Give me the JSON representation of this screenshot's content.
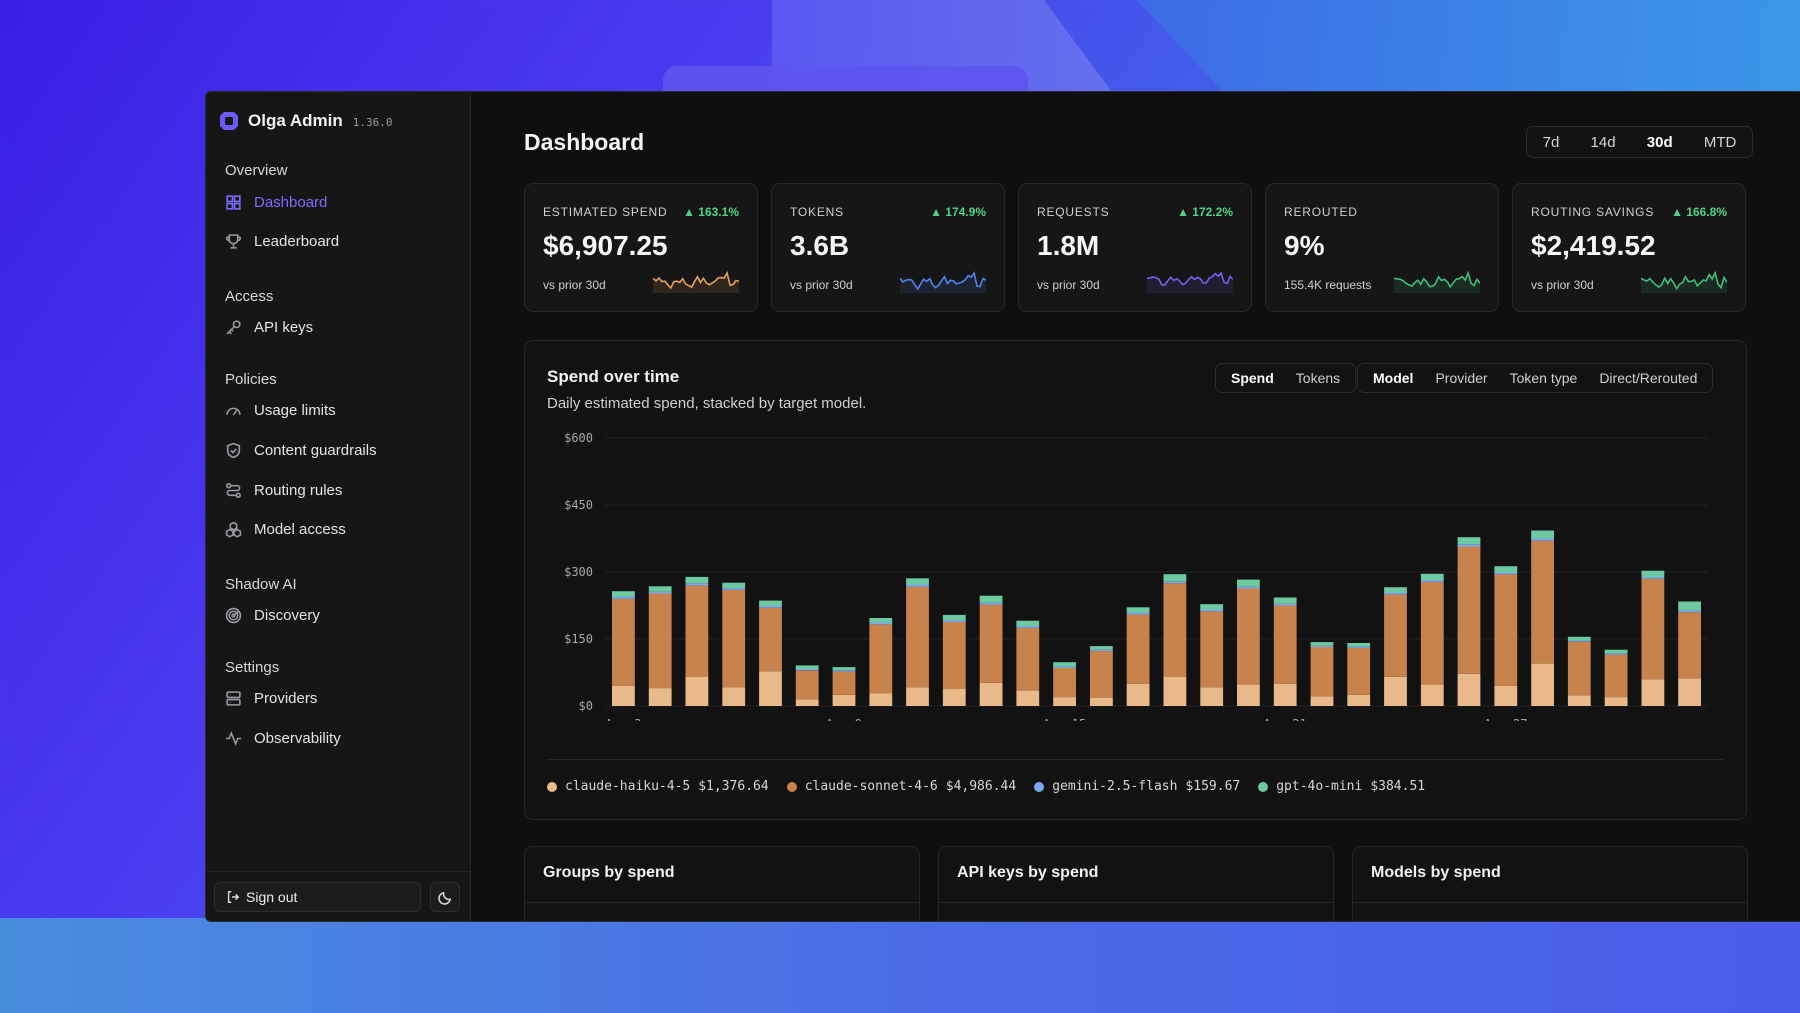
{
  "app": {
    "name": "Olga Admin",
    "version": "1.36.0"
  },
  "sidebar": {
    "sections": [
      {
        "label": "Overview",
        "items": [
          {
            "label": "Dashboard",
            "icon": "grid-icon",
            "active": true
          },
          {
            "label": "Leaderboard",
            "icon": "trophy-icon"
          }
        ]
      },
      {
        "label": "Access",
        "items": [
          {
            "label": "API keys",
            "icon": "key-icon"
          }
        ]
      },
      {
        "label": "Policies",
        "items": [
          {
            "label": "Usage limits",
            "icon": "gauge-icon"
          },
          {
            "label": "Content guardrails",
            "icon": "shield-icon"
          },
          {
            "label": "Routing rules",
            "icon": "route-icon"
          },
          {
            "label": "Model access",
            "icon": "cubes-icon"
          }
        ]
      },
      {
        "label": "Shadow AI",
        "items": [
          {
            "label": "Discovery",
            "icon": "radar-icon"
          }
        ]
      },
      {
        "label": "Settings",
        "items": [
          {
            "label": "Providers",
            "icon": "server-icon"
          },
          {
            "label": "Observability",
            "icon": "activity-icon"
          }
        ]
      }
    ],
    "sign_out": "Sign out"
  },
  "page": {
    "title": "Dashboard"
  },
  "range": {
    "options": [
      "7d",
      "14d",
      "30d",
      "MTD"
    ],
    "selected": "30d"
  },
  "kpis": [
    {
      "label": "ESTIMATED SPEND",
      "delta": "▲ 163.1%",
      "value": "$6,907.25",
      "sub": "vs prior 30d",
      "color": "#e8a056"
    },
    {
      "label": "TOKENS",
      "delta": "▲ 174.9%",
      "value": "3.6B",
      "sub": "vs prior 30d",
      "color": "#4f86f0"
    },
    {
      "label": "REQUESTS",
      "delta": "▲ 172.2%",
      "value": "1.8M",
      "sub": "vs prior 30d",
      "color": "#7a5cf0"
    },
    {
      "label": "REROUTED",
      "delta": "",
      "value": "9%",
      "sub": "155.4K requests",
      "color": "#3fbf78"
    },
    {
      "label": "ROUTING SAVINGS",
      "delta": "▲ 166.8%",
      "value": "$2,419.52",
      "sub": "vs prior 30d",
      "color": "#3fbf78"
    }
  ],
  "chart_card": {
    "title": "Spend over time",
    "subtitle": "Daily estimated spend, stacked by target model.",
    "metric_tabs": [
      "Spend",
      "Tokens"
    ],
    "metric_selected": "Spend",
    "group_tabs": [
      "Model",
      "Provider",
      "Token type",
      "Direct/Rerouted"
    ],
    "group_selected": "Model"
  },
  "chart_data": {
    "type": "bar",
    "stacked": true,
    "ylim": [
      0,
      600
    ],
    "yticks": [
      "$0",
      "$150",
      "$300",
      "$450",
      "$600"
    ],
    "xticks": [
      "Aug 3",
      "Aug 9",
      "Aug 15",
      "Aug 21",
      "Aug 27"
    ],
    "categories": [
      "Aug 3",
      "Aug 4",
      "Aug 5",
      "Aug 6",
      "Aug 7",
      "Aug 8",
      "Aug 9",
      "Aug 10",
      "Aug 11",
      "Aug 12",
      "Aug 13",
      "Aug 14",
      "Aug 15",
      "Aug 16",
      "Aug 17",
      "Aug 18",
      "Aug 19",
      "Aug 20",
      "Aug 21",
      "Aug 22",
      "Aug 23",
      "Aug 24",
      "Aug 25",
      "Aug 26",
      "Aug 27",
      "Aug 28",
      "Aug 29",
      "Aug 30",
      "Aug 31",
      "Sep 1"
    ],
    "series": [
      {
        "name": "claude-haiku-4-5",
        "color": "#e9b98a",
        "values": [
          45,
          40,
          65,
          42,
          78,
          15,
          25,
          28,
          42,
          38,
          52,
          35,
          20,
          18,
          50,
          65,
          42,
          48,
          50,
          22,
          25,
          65,
          48,
          72,
          45,
          95,
          24,
          20,
          60,
          62
        ]
      },
      {
        "name": "claude-sonnet-4-6",
        "color": "#c8824c",
        "values": [
          195,
          212,
          205,
          218,
          142,
          65,
          52,
          155,
          225,
          150,
          175,
          140,
          65,
          105,
          155,
          210,
          170,
          215,
          175,
          110,
          105,
          185,
          230,
          285,
          250,
          275,
          120,
          95,
          225,
          148
        ]
      },
      {
        "name": "gemini-2.5-flash",
        "color": "#7aa7f0",
        "values": [
          5,
          4,
          5,
          4,
          4,
          3,
          3,
          4,
          5,
          4,
          4,
          4,
          3,
          3,
          4,
          4,
          4,
          4,
          4,
          3,
          3,
          4,
          4,
          5,
          4,
          5,
          3,
          3,
          4,
          4
        ]
      },
      {
        "name": "gpt-4o-mini",
        "color": "#6cc9a0",
        "values": [
          12,
          12,
          14,
          12,
          12,
          8,
          7,
          10,
          14,
          12,
          16,
          12,
          10,
          8,
          12,
          16,
          12,
          16,
          14,
          8,
          8,
          12,
          14,
          16,
          14,
          18,
          8,
          8,
          14,
          20
        ]
      }
    ],
    "legend": [
      {
        "name": "claude-haiku-4-5",
        "total": "$1,376.64"
      },
      {
        "name": "claude-sonnet-4-6",
        "total": "$4,986.44"
      },
      {
        "name": "gemini-2.5-flash",
        "total": "$159.67"
      },
      {
        "name": "gpt-4o-mini",
        "total": "$384.51"
      }
    ]
  },
  "bottom_cards": [
    "Groups by spend",
    "API keys by spend",
    "Models by spend"
  ]
}
